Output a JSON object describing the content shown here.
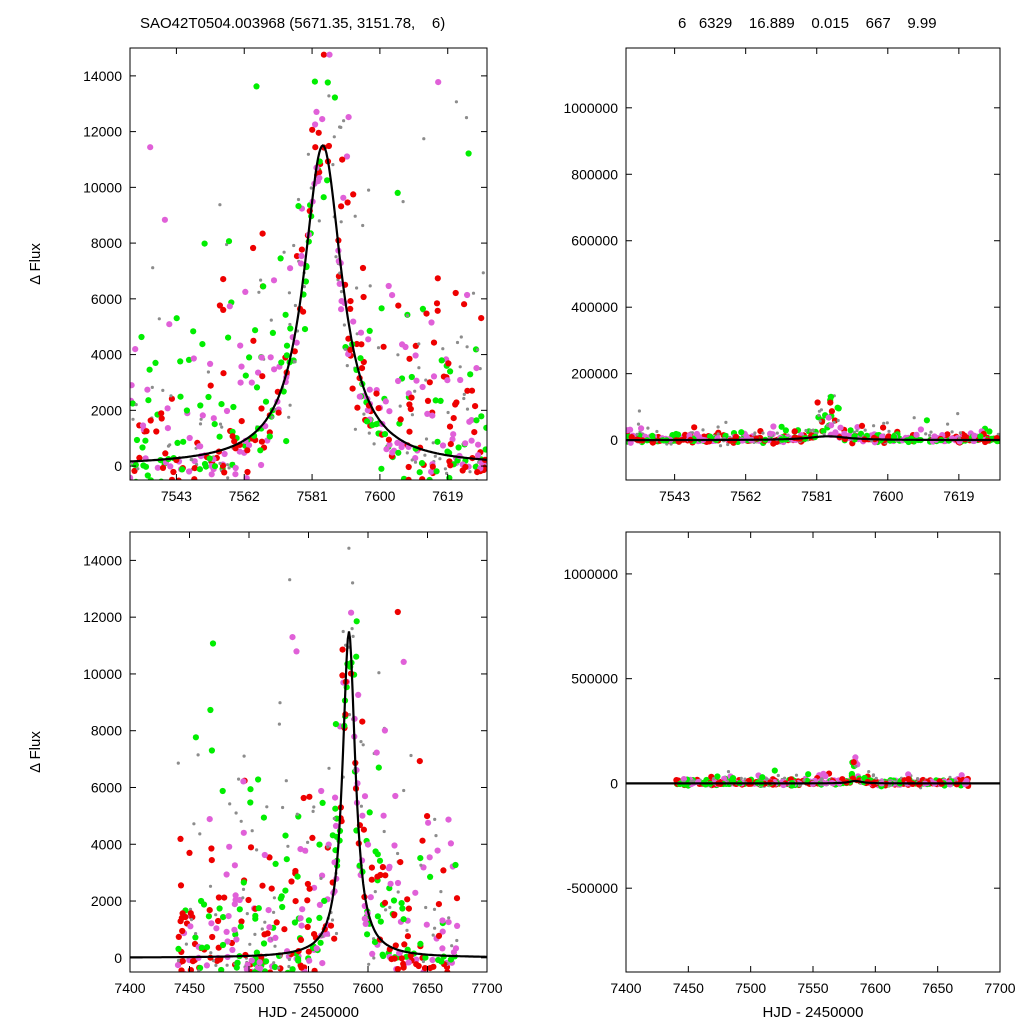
{
  "header": {
    "left": "SAO42T0504.003968 (5671.35, 3151.78,    6)",
    "right": "6   6329    16.889    0.015    667    9.99"
  },
  "colors": {
    "grey": "#8c8c8c",
    "red": "#ee0000",
    "magenta": "#e060d8",
    "green": "#00ee00",
    "model": "#000000"
  },
  "chart_data": [
    {
      "type": "scatter",
      "panel": "top-left",
      "ylabel": "Δ Flux",
      "xlabel": "",
      "xlim": [
        7530,
        7630
      ],
      "ylim": [
        -500,
        15000
      ],
      "xticks": [
        7543,
        7562,
        7581,
        7600,
        7619
      ],
      "yticks": [
        0,
        2000,
        4000,
        6000,
        8000,
        10000,
        12000,
        14000
      ],
      "model": {
        "peak_x": 7584,
        "peak_y": 11500,
        "width": 6.5
      }
    },
    {
      "type": "scatter",
      "panel": "top-right",
      "ylabel": "",
      "xlabel": "",
      "xlim": [
        7530,
        7630
      ],
      "ylim": [
        -120000,
        1180000
      ],
      "xticks": [
        7543,
        7562,
        7581,
        7600,
        7619
      ],
      "yticks": [
        0,
        200000,
        400000,
        600000,
        800000,
        1000000
      ],
      "model": {
        "peak_x": 7584,
        "peak_y": 11500,
        "width": 6.5
      }
    },
    {
      "type": "scatter",
      "panel": "bottom-left",
      "ylabel": "Δ Flux",
      "xlabel": "HJD - 2450000",
      "xlim": [
        7400,
        7700
      ],
      "ylim": [
        -500,
        15000
      ],
      "xticks": [
        7400,
        7450,
        7500,
        7550,
        7600,
        7650,
        7700
      ],
      "yticks": [
        0,
        2000,
        4000,
        6000,
        8000,
        10000,
        12000,
        14000
      ],
      "model": {
        "peak_x": 7584,
        "peak_y": 11500,
        "width": 6.5
      }
    },
    {
      "type": "scatter",
      "panel": "bottom-right",
      "ylabel": "",
      "xlabel": "HJD - 2450000",
      "xlim": [
        7400,
        7700
      ],
      "ylim": [
        -900000,
        1200000
      ],
      "xticks": [
        7400,
        7450,
        7500,
        7550,
        7600,
        7650,
        7700
      ],
      "yticks": [
        -500000,
        0,
        500000,
        1000000
      ],
      "model": {
        "peak_x": 7584,
        "peak_y": 11500,
        "width": 6.5
      }
    }
  ]
}
